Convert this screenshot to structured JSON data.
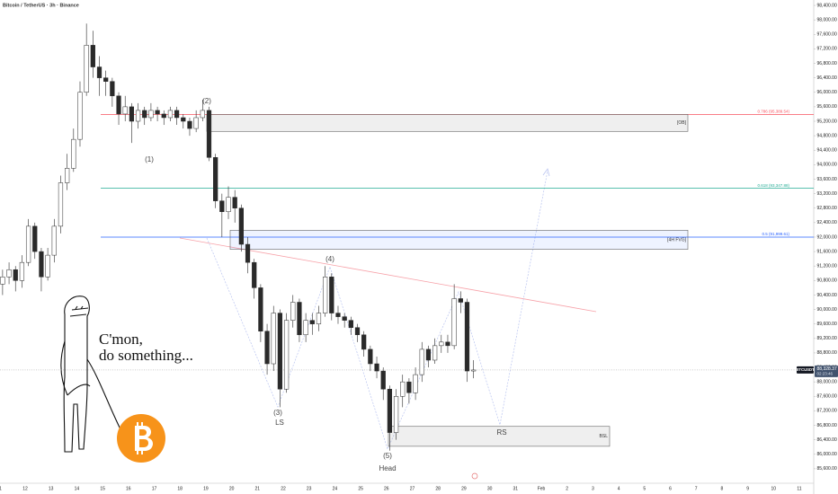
{
  "chart_data": {
    "type": "candlestick",
    "title": "Bitcoin / TetherUS · 3h · Binance",
    "symbol": "BTCUSDT",
    "countdown": "02:23:46",
    "last_price": {
      "value": 88328.37,
      "label": "88,328.37"
    },
    "up_color": "#ffffff",
    "down_color": "#2a2a2a",
    "edge_color": "#2a2a2a",
    "xticks": [
      "11",
      "12",
      "13",
      "14",
      "15",
      "16",
      "17",
      "18",
      "19",
      "20",
      "21",
      "22",
      "23",
      "24",
      "25",
      "26",
      "27",
      "28",
      "29",
      "30",
      "31",
      "Feb",
      "2",
      "3",
      "4",
      "5",
      "6",
      "7",
      "8",
      "9",
      "10",
      "11"
    ],
    "open": [
      90700,
      90900,
      91100,
      90800,
      91300,
      92300,
      91600,
      90900,
      91500,
      92300,
      93500,
      93900,
      94700,
      96000,
      97300,
      96700,
      96400,
      96300,
      95900,
      95400,
      95600,
      95200,
      95500,
      95300,
      95500,
      95400,
      95300,
      95500,
      95300,
      95200,
      95000,
      95300,
      95500,
      94200,
      93000,
      92700,
      93100,
      92800,
      91800,
      91300,
      90600,
      89400,
      88500,
      89900,
      87800,
      89700,
      90200,
      89300,
      89700,
      89600,
      89900,
      90900,
      89900,
      89800,
      89700,
      89500,
      89300,
      88900,
      88500,
      88300,
      87800,
      86600,
      87600,
      88000,
      87700,
      88200,
      88900,
      88600,
      89000,
      89100,
      89000,
      90300,
      90200,
      88300
    ],
    "high": [
      91100,
      91300,
      91200,
      91500,
      92500,
      92400,
      91700,
      91700,
      92500,
      93700,
      94300,
      95000,
      96300,
      97900,
      97700,
      97000,
      96600,
      96400,
      96000,
      95900,
      95700,
      95700,
      95600,
      95700,
      95600,
      95500,
      95600,
      95600,
      95400,
      95300,
      95500,
      95800,
      95600,
      94300,
      93200,
      93400,
      93300,
      92900,
      92000,
      91400,
      90700,
      89600,
      90100,
      90000,
      89900,
      90400,
      90300,
      89900,
      89900,
      90100,
      91200,
      91000,
      90100,
      89900,
      89800,
      89600,
      89400,
      89000,
      88700,
      88400,
      87900,
      87800,
      88200,
      88100,
      88400,
      89100,
      89000,
      89200,
      89300,
      89300,
      90700,
      90500,
      90300,
      88600
    ],
    "low": [
      90400,
      90700,
      90500,
      90600,
      91200,
      91400,
      90500,
      90800,
      91300,
      92100,
      93300,
      93800,
      94500,
      95900,
      96400,
      95900,
      95900,
      95600,
      95100,
      95200,
      94600,
      95000,
      95100,
      95200,
      95200,
      95100,
      95200,
      95100,
      95000,
      94800,
      94900,
      95200,
      94100,
      92800,
      92000,
      92500,
      92400,
      91600,
      91000,
      90300,
      89100,
      88200,
      88300,
      87300,
      87700,
      89500,
      89100,
      89100,
      89300,
      89400,
      89800,
      89700,
      89600,
      89500,
      89300,
      89100,
      88700,
      88300,
      88100,
      87500,
      86100,
      86400,
      87300,
      87400,
      87500,
      88000,
      88400,
      88500,
      88800,
      88800,
      88900,
      89900,
      88000,
      88100
    ],
    "close": [
      90900,
      91100,
      90800,
      91300,
      92300,
      91600,
      90900,
      91500,
      92300,
      93500,
      93900,
      94700,
      96000,
      97300,
      96700,
      96400,
      96300,
      95900,
      95400,
      95600,
      95200,
      95500,
      95300,
      95500,
      95400,
      95300,
      95500,
      95300,
      95200,
      95000,
      95300,
      95500,
      94200,
      93000,
      92700,
      93100,
      92800,
      91800,
      91300,
      90600,
      89400,
      88500,
      89900,
      87800,
      89700,
      90200,
      89300,
      89700,
      89600,
      89900,
      90900,
      89900,
      89800,
      89700,
      89500,
      89300,
      88900,
      88500,
      88300,
      87800,
      86600,
      87600,
      88000,
      87700,
      88200,
      88900,
      88600,
      89000,
      89100,
      89000,
      90300,
      90200,
      88300,
      88328.37
    ],
    "ylim": [
      85200,
      98550
    ],
    "yticks": [
      {
        "value": 85600,
        "label": "85,600.00"
      },
      {
        "value": 86000,
        "label": "86,000.00"
      },
      {
        "value": 86400,
        "label": "86,400.00"
      },
      {
        "value": 86800,
        "label": "86,800.00"
      },
      {
        "value": 87200,
        "label": "87,200.00"
      },
      {
        "value": 87600,
        "label": "87,600.00"
      },
      {
        "value": 88000,
        "label": "88,000.00"
      },
      {
        "value": 88400,
        "label": "88,400.00"
      },
      {
        "value": 88800,
        "label": "88,800.00"
      },
      {
        "value": 89200,
        "label": "89,200.00"
      },
      {
        "value": 89600,
        "label": "89,600.00"
      },
      {
        "value": 90000,
        "label": "90,000.00"
      },
      {
        "value": 90400,
        "label": "90,400.00"
      },
      {
        "value": 90800,
        "label": "90,800.00"
      },
      {
        "value": 91200,
        "label": "91,200.00"
      },
      {
        "value": 91600,
        "label": "91,600.00"
      },
      {
        "value": 92000,
        "label": "92,000.00"
      },
      {
        "value": 92400,
        "label": "92,400.00"
      },
      {
        "value": 92800,
        "label": "92,800.00"
      },
      {
        "value": 93200,
        "label": "93,200.00"
      },
      {
        "value": 93600,
        "label": "93,600.00"
      },
      {
        "value": 94000,
        "label": "94,000.00"
      },
      {
        "value": 94400,
        "label": "94,400.00"
      },
      {
        "value": 94800,
        "label": "94,800.00"
      },
      {
        "value": 95200,
        "label": "95,200.00"
      },
      {
        "value": 95600,
        "label": "95,600.00"
      },
      {
        "value": 96000,
        "label": "96,000.00"
      },
      {
        "value": 96400,
        "label": "96,400.00"
      },
      {
        "value": 96800,
        "label": "96,800.00"
      },
      {
        "value": 97200,
        "label": "97,200.00"
      },
      {
        "value": 97600,
        "label": "97,600.00"
      },
      {
        "value": 98000,
        "label": "98,000.00"
      },
      {
        "value": 98400,
        "label": "98,400.00"
      }
    ],
    "fib_levels": [
      {
        "label": "0.786 (95,389.54)",
        "value": 95389.54,
        "color": "#f7525f"
      },
      {
        "label": "0.618 (93,347.88)",
        "value": 93347.88,
        "color": "#22ab94"
      },
      {
        "label": "0.5 (91,999.61)",
        "value": 91999.61,
        "color": "#2962ff"
      }
    ],
    "zones": [
      {
        "label": "[OB]",
        "top": 95390,
        "bottom": 94920
      },
      {
        "label": "[4H FVG]",
        "top": 92190,
        "bottom": 91660
      },
      {
        "label": "BSL",
        "top": 86770,
        "bottom": 86220
      }
    ],
    "wave_labels": [
      "(1)",
      "(2)",
      "(3)",
      "LS",
      "(4)",
      "(5)",
      "Head",
      "RS"
    ],
    "speech": [
      "C'mon,",
      "do something..."
    ],
    "grid": false
  }
}
